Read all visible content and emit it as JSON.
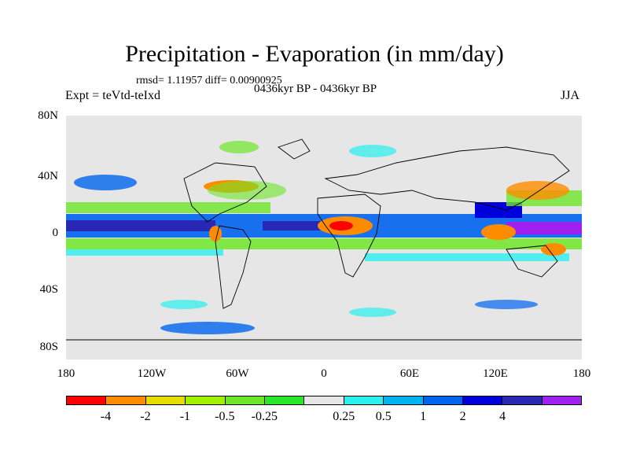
{
  "title": "Precipitation - Evaporation (in mm/day)",
  "stats": "rmsd= 1.11957 diff= 0.00900925",
  "period": "0436kyr BP - 0436kyr BP",
  "expt": "Expt = teVtd-teIxd",
  "season": "JJA",
  "y_axis_labels": [
    "80N",
    "40N",
    "0",
    "40S",
    "80S"
  ],
  "x_axis_labels": [
    "180",
    "120W",
    "60W",
    "0",
    "60E",
    "120E",
    "180"
  ],
  "colorbar": {
    "colors": [
      "#ff0000",
      "#ff8c00",
      "#e6dc00",
      "#a0f000",
      "#6ee628",
      "#28e628",
      "#e6e6e6",
      "#2af0f0",
      "#00b4f0",
      "#0064f0",
      "#0000dc",
      "#2828b4",
      "#a020f0"
    ],
    "labels": [
      "-4",
      "-2",
      "-1",
      "-0.5",
      "-0.25",
      "0.25",
      "0.5",
      "1",
      "2",
      "4"
    ]
  }
}
